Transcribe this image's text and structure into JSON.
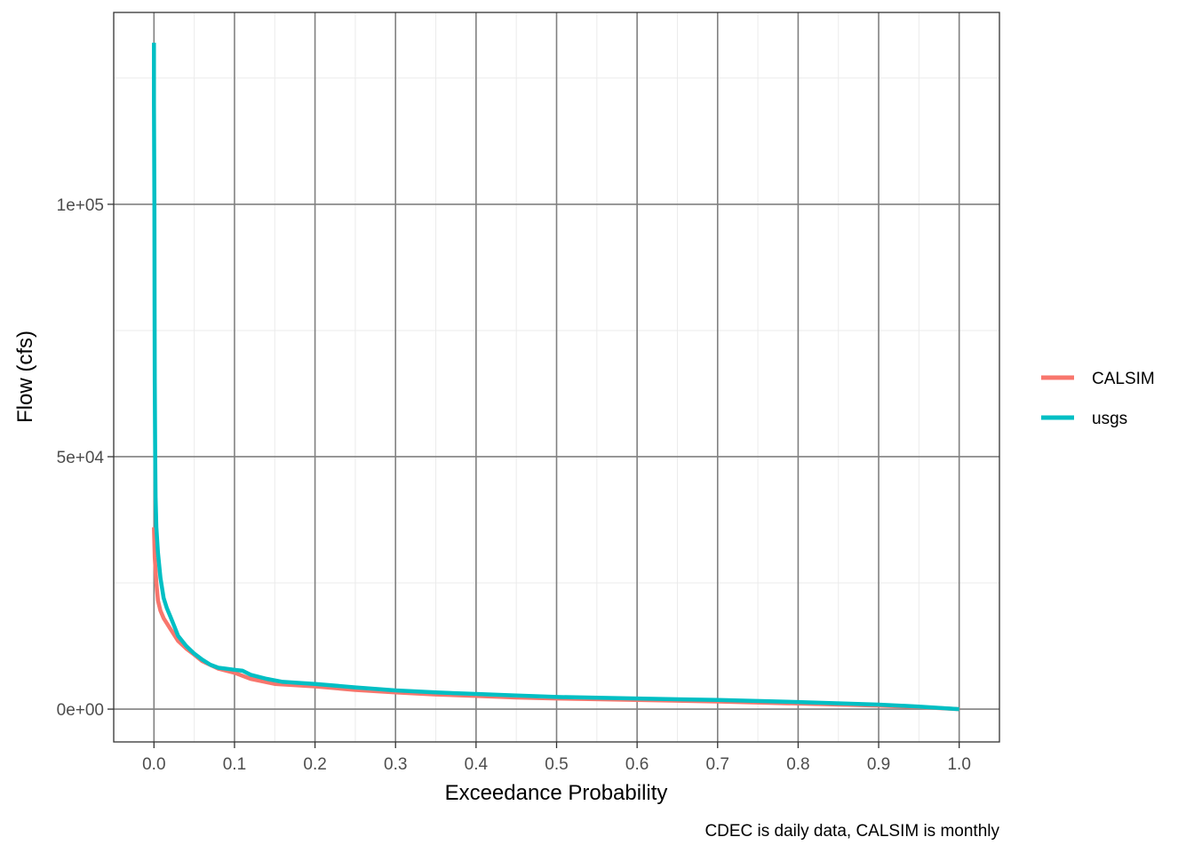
{
  "chart_data": {
    "type": "line",
    "title": "",
    "xlabel": "Exceedance Probability",
    "ylabel": "Flow (cfs)",
    "caption": "CDEC is daily data, CALSIM is monthly",
    "xlim": [
      -0.05,
      1.05
    ],
    "ylim": [
      -6500,
      138000
    ],
    "x_ticks": [
      0,
      0.1,
      0.2,
      0.3,
      0.4,
      0.5,
      0.6,
      0.7,
      0.8,
      0.9,
      1.0
    ],
    "x_tick_labels": [
      "0.0",
      "0.1",
      "0.2",
      "0.3",
      "0.4",
      "0.5",
      "0.6",
      "0.7",
      "0.8",
      "0.9",
      "1.0"
    ],
    "y_ticks": [
      0,
      50000,
      100000
    ],
    "y_tick_labels": [
      "0e+00",
      "5e+04",
      "1e+05"
    ],
    "grid": true,
    "legend_position": "right",
    "series": [
      {
        "name": "CALSIM",
        "color": "#F8766D",
        "x": [
          0,
          0.001,
          0.003,
          0.005,
          0.008,
          0.012,
          0.02,
          0.03,
          0.04,
          0.05,
          0.06,
          0.08,
          0.1,
          0.12,
          0.15,
          0.2,
          0.25,
          0.3,
          0.35,
          0.4,
          0.45,
          0.5,
          0.6,
          0.7,
          0.8,
          0.9,
          0.95,
          1.0
        ],
        "values": [
          36000,
          30000,
          25000,
          21500,
          19500,
          18000,
          16000,
          13500,
          12000,
          10800,
          9500,
          8000,
          7200,
          6000,
          5000,
          4500,
          3800,
          3300,
          2900,
          2600,
          2300,
          2100,
          1800,
          1500,
          1100,
          700,
          400,
          0
        ]
      },
      {
        "name": "usgs",
        "color": "#00BFC4",
        "x": [
          0,
          0,
          0.0005,
          0.0008,
          0.001,
          0.0015,
          0.002,
          0.003,
          0.005,
          0.008,
          0.012,
          0.016,
          0.02,
          0.025,
          0.03,
          0.04,
          0.05,
          0.06,
          0.07,
          0.08,
          0.1,
          0.11,
          0.12,
          0.14,
          0.16,
          0.2,
          0.25,
          0.3,
          0.35,
          0.4,
          0.45,
          0.5,
          0.6,
          0.7,
          0.8,
          0.9,
          0.95,
          1.0
        ],
        "values": [
          132000,
          120000,
          100000,
          80000,
          65000,
          50000,
          42000,
          36000,
          31000,
          26000,
          22000,
          20000,
          18500,
          16500,
          14500,
          12500,
          11000,
          9800,
          8800,
          8200,
          7800,
          7600,
          6800,
          6000,
          5400,
          5000,
          4300,
          3700,
          3300,
          3000,
          2700,
          2400,
          2100,
          1800,
          1400,
          900,
          500,
          0
        ]
      }
    ]
  }
}
